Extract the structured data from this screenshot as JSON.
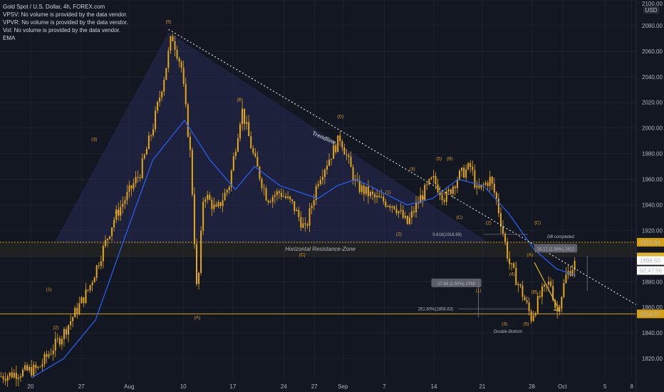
{
  "legend": {
    "title": "Gold Spot / U.S. Dollar, 4h, FOREX.com",
    "lines": [
      "VPSV: No volume is provided by the data vendor.",
      "VPVR: No volume is provided by the data vendor.",
      "Vol: No volume is provided by the data vendor.",
      "EMA"
    ]
  },
  "chart_data": {
    "type": "candlestick",
    "symbol": "Gold Spot / U.S. Dollar",
    "interval": "4h",
    "currency": "USD",
    "y_range": [
      1805,
      2100
    ],
    "y_ticks": [
      1820,
      1840,
      1860,
      1880,
      1900,
      1920,
      1940,
      1960,
      1980,
      2000,
      2020,
      2040,
      2060,
      2080,
      2100
    ],
    "x_ticks": [
      "20",
      "27",
      "Aug",
      "10",
      "17",
      "24",
      "27",
      "Sep",
      "7",
      "14",
      "21",
      "28",
      "Oct",
      "5",
      "8"
    ],
    "price_path": [
      [
        0,
        1806
      ],
      [
        0.06,
        1812
      ],
      [
        0.1,
        1840
      ],
      [
        0.14,
        1875
      ],
      [
        0.18,
        1930
      ],
      [
        0.22,
        1965
      ],
      [
        0.24,
        2000
      ],
      [
        0.26,
        2045
      ],
      [
        0.27,
        2073
      ],
      [
        0.285,
        2048
      ],
      [
        0.3,
        1975
      ],
      [
        0.31,
        1865
      ],
      [
        0.32,
        1950
      ],
      [
        0.34,
        1935
      ],
      [
        0.36,
        1955
      ],
      [
        0.38,
        2015
      ],
      [
        0.4,
        1975
      ],
      [
        0.42,
        1945
      ],
      [
        0.44,
        1950
      ],
      [
        0.46,
        1940
      ],
      [
        0.48,
        1920
      ],
      [
        0.5,
        1960
      ],
      [
        0.535,
        1993
      ],
      [
        0.56,
        1955
      ],
      [
        0.59,
        1945
      ],
      [
        0.62,
        1940
      ],
      [
        0.64,
        1925
      ],
      [
        0.66,
        1945
      ],
      [
        0.68,
        1960
      ],
      [
        0.7,
        1945
      ],
      [
        0.72,
        1962
      ],
      [
        0.74,
        1970
      ],
      [
        0.75,
        1950
      ],
      [
        0.77,
        1960
      ],
      [
        0.78,
        1945
      ],
      [
        0.8,
        1895
      ],
      [
        0.82,
        1872
      ],
      [
        0.835,
        1852
      ],
      [
        0.85,
        1870
      ],
      [
        0.865,
        1880
      ],
      [
        0.875,
        1855
      ],
      [
        0.89,
        1885
      ],
      [
        0.905,
        1895
      ]
    ],
    "ema_path": [
      [
        0.05,
        1805
      ],
      [
        0.1,
        1820
      ],
      [
        0.15,
        1850
      ],
      [
        0.2,
        1920
      ],
      [
        0.24,
        1975
      ],
      [
        0.29,
        2006
      ],
      [
        0.33,
        1975
      ],
      [
        0.37,
        1952
      ],
      [
        0.4,
        1970
      ],
      [
        0.44,
        1955
      ],
      [
        0.5,
        1945
      ],
      [
        0.53,
        1955
      ],
      [
        0.56,
        1960
      ],
      [
        0.6,
        1950
      ],
      [
        0.64,
        1940
      ],
      [
        0.68,
        1945
      ],
      [
        0.72,
        1960
      ],
      [
        0.76,
        1955
      ],
      [
        0.8,
        1933
      ],
      [
        0.84,
        1905
      ],
      [
        0.875,
        1890
      ],
      [
        0.905,
        1885
      ]
    ],
    "levels": [
      {
        "name": "Horizontal Resistance-Zone",
        "price": 1910.84,
        "label": "1910.84",
        "color": "#d4a017"
      },
      {
        "name": "support",
        "price": 1854.87,
        "label": "1854.87",
        "color": "#d4a017"
      }
    ],
    "price_labels": [
      {
        "text": "1899.37",
        "price": 1899.37,
        "bg": "#e6b422",
        "fg": "#000000"
      },
      {
        "text": "1896.50",
        "price": 1896.5,
        "bg": "#ffffff",
        "fg": "#000000"
      },
      {
        "text": "02:47:56",
        "price": 1891.0,
        "bg": "#ffffff",
        "fg": "#000000"
      }
    ],
    "axis_unit": "USD",
    "axis_top_label": "2100.00",
    "trendline_label": "Trendline",
    "zone_label": "Horizontal Resistance-Zone",
    "double_bottom_label": "Double-Bottom",
    "db_completed_label": "DB completed",
    "measure_left": "27.68 (1.50%) 2768",
    "measure_right": "26.12 (1.39%) 2612",
    "fib_618": "0.618(1916.99)",
    "fib_2618": "261.80%(1858.83)",
    "wave_labels": [
      {
        "t": "(5)",
        "x": 0.265,
        "p": 2082
      },
      {
        "t": "(3)",
        "x": 0.148,
        "p": 1990
      },
      {
        "t": "(4)",
        "x": 0.185,
        "p": 1933
      },
      {
        "t": "(1)",
        "x": 0.077,
        "p": 1873
      },
      {
        "t": "(2)",
        "x": 0.088,
        "p": 1843
      },
      {
        "t": "(A)",
        "x": 0.31,
        "p": 1851
      },
      {
        "t": "(B)",
        "x": 0.377,
        "p": 2021
      },
      {
        "t": "(C)",
        "x": 0.475,
        "p": 1900
      },
      {
        "t": "(D)",
        "x": 0.535,
        "p": 2008
      },
      {
        "t": "(1)",
        "x": 0.61,
        "p": 1949
      },
      {
        "t": "(2)",
        "x": 0.627,
        "p": 1916
      },
      {
        "t": "(3)",
        "x": 0.648,
        "p": 1967
      },
      {
        "t": "(4)",
        "x": 0.665,
        "p": 1944
      },
      {
        "t": "(5)",
        "x": 0.69,
        "p": 1975
      },
      {
        "t": "(B)",
        "x": 0.707,
        "p": 1975
      },
      {
        "t": "(A)",
        "x": 0.695,
        "p": 1948
      },
      {
        "t": "(C)",
        "x": 0.722,
        "p": 1929
      },
      {
        "t": "(2)",
        "x": 0.768,
        "p": 1925
      },
      {
        "t": "(1)",
        "x": 0.752,
        "p": 1872
      },
      {
        "t": "(3)",
        "x": 0.793,
        "p": 1846
      },
      {
        "t": "(4)",
        "x": 0.805,
        "p": 1885
      },
      {
        "t": "(5)",
        "x": 0.827,
        "p": 1846
      },
      {
        "t": "(A)",
        "x": 0.833,
        "p": 1900
      },
      {
        "t": "(B)",
        "x": 0.84,
        "p": 1871
      },
      {
        "t": "(C)",
        "x": 0.845,
        "p": 1925
      }
    ]
  },
  "colors": {
    "background": "#131722",
    "candle": "#e6a817",
    "ema": "#2962ff",
    "grid": "#1e222d",
    "axis_text": "#b2b5be",
    "level": "#d4a017"
  }
}
